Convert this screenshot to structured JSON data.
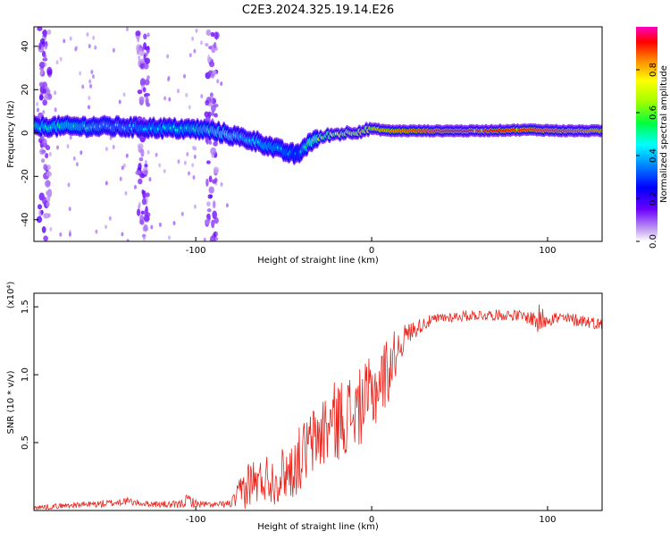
{
  "title": "C2E3.2024.325.19.14.E26",
  "chart_data": [
    {
      "type": "heatmap",
      "xlabel": "Height of straight line (km)",
      "ylabel": "Frequency (Hz)",
      "xlim": [
        -192,
        131
      ],
      "ylim": [
        -50,
        49
      ],
      "x_ticks": [
        -100,
        0,
        100
      ],
      "x_tick_labels": [
        "-100",
        "0",
        "100"
      ],
      "y_ticks": [
        -40,
        -20,
        0,
        20,
        40
      ],
      "y_tick_labels": [
        "-40",
        "-20",
        "0",
        "20",
        "40"
      ],
      "colorbar": {
        "label": "Normalized spectral amplitude",
        "range": [
          0,
          1
        ],
        "ticks": [
          0.0,
          0.2,
          0.4,
          0.6,
          0.8
        ],
        "tick_labels": [
          "0.0",
          "0.2",
          "0.4",
          "0.6",
          "0.8"
        ]
      },
      "ridge": {
        "x": [
          -190,
          -170,
          -150,
          -130,
          -110,
          -95,
          -85,
          -75,
          -65,
          -55,
          -48,
          -42,
          -35,
          -25,
          -15,
          -5,
          0,
          10,
          30,
          60,
          90,
          110,
          131
        ],
        "frequency": [
          3,
          3,
          3,
          2.5,
          2,
          1.5,
          0,
          -2,
          -4,
          -7,
          -9,
          -10,
          -4,
          -1,
          0,
          1,
          2,
          1,
          1,
          1,
          1.5,
          1,
          1
        ],
        "amplitude": [
          0.5,
          0.5,
          0.45,
          0.45,
          0.45,
          0.5,
          0.55,
          0.5,
          0.5,
          0.45,
          0.4,
          0.35,
          0.6,
          0.7,
          0.8,
          0.85,
          0.8,
          0.85,
          0.9,
          0.95,
          0.9,
          0.9,
          0.85
        ]
      },
      "noise_columns_x": [
        -186,
        -130,
        -91
      ]
    },
    {
      "type": "line",
      "xlabel": "Height of straight line (km)",
      "ylabel": "SNR (10 * v/v)",
      "y_scale_label": "(x10⁴)",
      "xlim": [
        -192,
        131
      ],
      "ylim": [
        0,
        1.6
      ],
      "x_ticks": [
        -100,
        0,
        100
      ],
      "x_tick_labels": [
        "-100",
        "0",
        "100"
      ],
      "y_ticks": [
        0.5,
        1.0,
        1.5
      ],
      "y_tick_labels": [
        "0.5",
        "1.0",
        "1.5"
      ],
      "color": "#e8241c",
      "series": [
        {
          "x": [
            -192,
            -170,
            -150,
            -140,
            -130,
            -110,
            -104,
            -100,
            -90,
            -80,
            -76,
            -72,
            -68,
            -65,
            -60,
            -55,
            -50,
            -45,
            -40,
            -35,
            -30,
            -25,
            -20,
            -15,
            -10,
            -5,
            0,
            5,
            10,
            15,
            20,
            30,
            40,
            50,
            60,
            70,
            80,
            90,
            95,
            100,
            110,
            120,
            131
          ],
          "base": [
            0.02,
            0.04,
            0.05,
            0.07,
            0.05,
            0.04,
            0.08,
            0.05,
            0.04,
            0.05,
            0.1,
            0.18,
            0.22,
            0.2,
            0.25,
            0.22,
            0.28,
            0.3,
            0.4,
            0.48,
            0.55,
            0.62,
            0.66,
            0.7,
            0.72,
            0.78,
            0.85,
            0.95,
            1.05,
            1.2,
            1.3,
            1.38,
            1.42,
            1.43,
            1.44,
            1.44,
            1.44,
            1.42,
            1.4,
            1.42,
            1.41,
            1.4,
            1.37
          ],
          "amp": [
            0.02,
            0.02,
            0.03,
            0.03,
            0.02,
            0.03,
            0.05,
            0.03,
            0.02,
            0.03,
            0.1,
            0.18,
            0.18,
            0.16,
            0.18,
            0.18,
            0.2,
            0.22,
            0.25,
            0.25,
            0.28,
            0.3,
            0.3,
            0.3,
            0.3,
            0.28,
            0.3,
            0.28,
            0.25,
            0.15,
            0.08,
            0.05,
            0.04,
            0.04,
            0.04,
            0.04,
            0.04,
            0.05,
            0.12,
            0.06,
            0.05,
            0.05,
            0.04
          ]
        }
      ]
    }
  ]
}
